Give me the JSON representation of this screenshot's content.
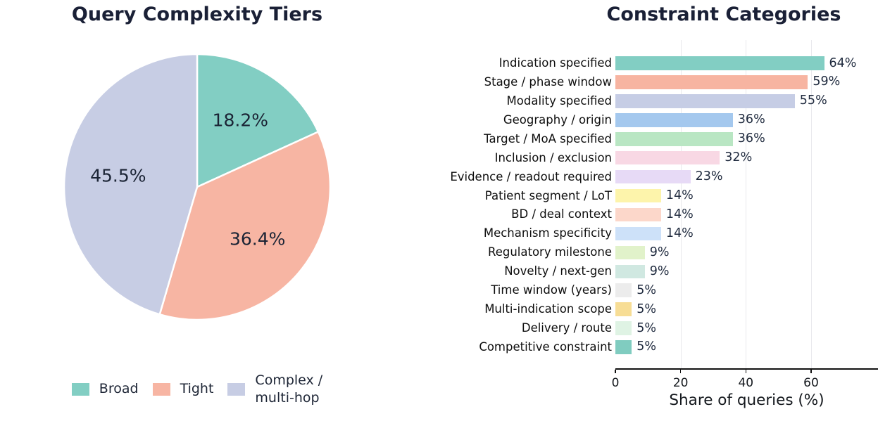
{
  "figure": {
    "background": "#ffffff",
    "title_color": "#1a2036",
    "value_label_color": "#1f2a3e",
    "grid_color": "#e9e9ed",
    "axis_color": "#111111"
  },
  "chart_data": [
    {
      "type": "pie",
      "title": "Query Complexity Tiers",
      "labels": [
        "Broad",
        "Tight",
        "Complex / multi-hop"
      ],
      "values": [
        18.2,
        36.4,
        45.5
      ],
      "value_labels": [
        "18.2%",
        "36.4%",
        "45.5%"
      ],
      "colors": [
        "#82cec3",
        "#f7b5a3",
        "#c7cde4"
      ],
      "start_angle": "top",
      "direction": "clockwise",
      "legend_position": "bottom",
      "legend": [
        {
          "label": "Broad",
          "color": "#82cec3"
        },
        {
          "label": "Tight",
          "color": "#f7b5a3"
        },
        {
          "label": "Complex /\nmulti-hop",
          "color": "#c7cde4"
        }
      ]
    },
    {
      "type": "bar",
      "orientation": "horizontal",
      "title": "Constraint Categories",
      "categories": [
        "Indication specified",
        "Stage / phase window",
        "Modality specified",
        "Geography / origin",
        "Target / MoA specified",
        "Inclusion / exclusion",
        "Evidence / readout required",
        "Patient segment / LoT",
        "BD / deal context",
        "Mechanism specificity",
        "Regulatory milestone",
        "Novelty / next-gen",
        "Time window (years)",
        "Multi-indication scope",
        "Delivery / route",
        "Competitive constraint"
      ],
      "values": [
        64,
        59,
        55,
        36,
        36,
        32,
        23,
        14,
        14,
        14,
        9,
        9,
        5,
        5,
        5,
        5
      ],
      "value_labels": [
        "64%",
        "59%",
        "55%",
        "36%",
        "36%",
        "32%",
        "23%",
        "14%",
        "14%",
        "14%",
        "9%",
        "9%",
        "5%",
        "5%",
        "5%",
        "5%"
      ],
      "colors": [
        "#82cec3",
        "#f7b4a1",
        "#c6cde5",
        "#a4c8ee",
        "#b9e6c3",
        "#f8d8e4",
        "#e7daf6",
        "#fdf4ab",
        "#fcd7ca",
        "#cde1f9",
        "#e1f2ca",
        "#d0e8e1",
        "#ececec",
        "#f7dd95",
        "#dff3e4",
        "#80ccc0"
      ],
      "xlabel": "Share of queries (%)",
      "xlim": [
        0,
        80
      ],
      "xticks": [
        0,
        20,
        40,
        60
      ],
      "grid": "vertical-light"
    }
  ]
}
